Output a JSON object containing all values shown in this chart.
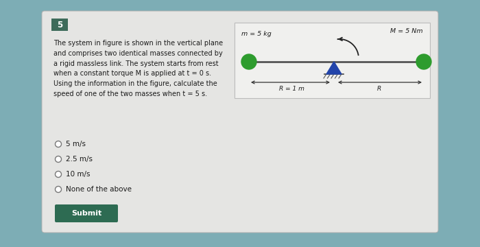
{
  "bg_outer": "#7dadb5",
  "bg_card": "#e5e5e3",
  "question_num": "5",
  "question_num_bg": "#3d6b5a",
  "question_num_color": "#ffffff",
  "question_text": "The system in figure is shown in the vertical plane\nand comprises two identical masses connected by\na rigid massless link. The system starts from rest\nwhen a constant torque M is applied at t = 0 s.\nUsing the information in the figure, calculate the\nspeed of one of the two masses when t = 5 s.",
  "options": [
    "5 m/s",
    "2.5 m/s",
    "10 m/s",
    "None of the above"
  ],
  "submit_bg": "#2d6b52",
  "submit_text": "Submit",
  "submit_text_color": "#ffffff",
  "diagram_bg": "#f0f0ee",
  "param_m": "m = 5 kg",
  "param_M": "M = 5 Nm",
  "param_R": "R = 1 m",
  "param_R2": "R",
  "mass_color": "#2e9c2e",
  "link_color": "#555555",
  "pivot_tri_color": "#2244aa",
  "arrow_color": "#333333"
}
